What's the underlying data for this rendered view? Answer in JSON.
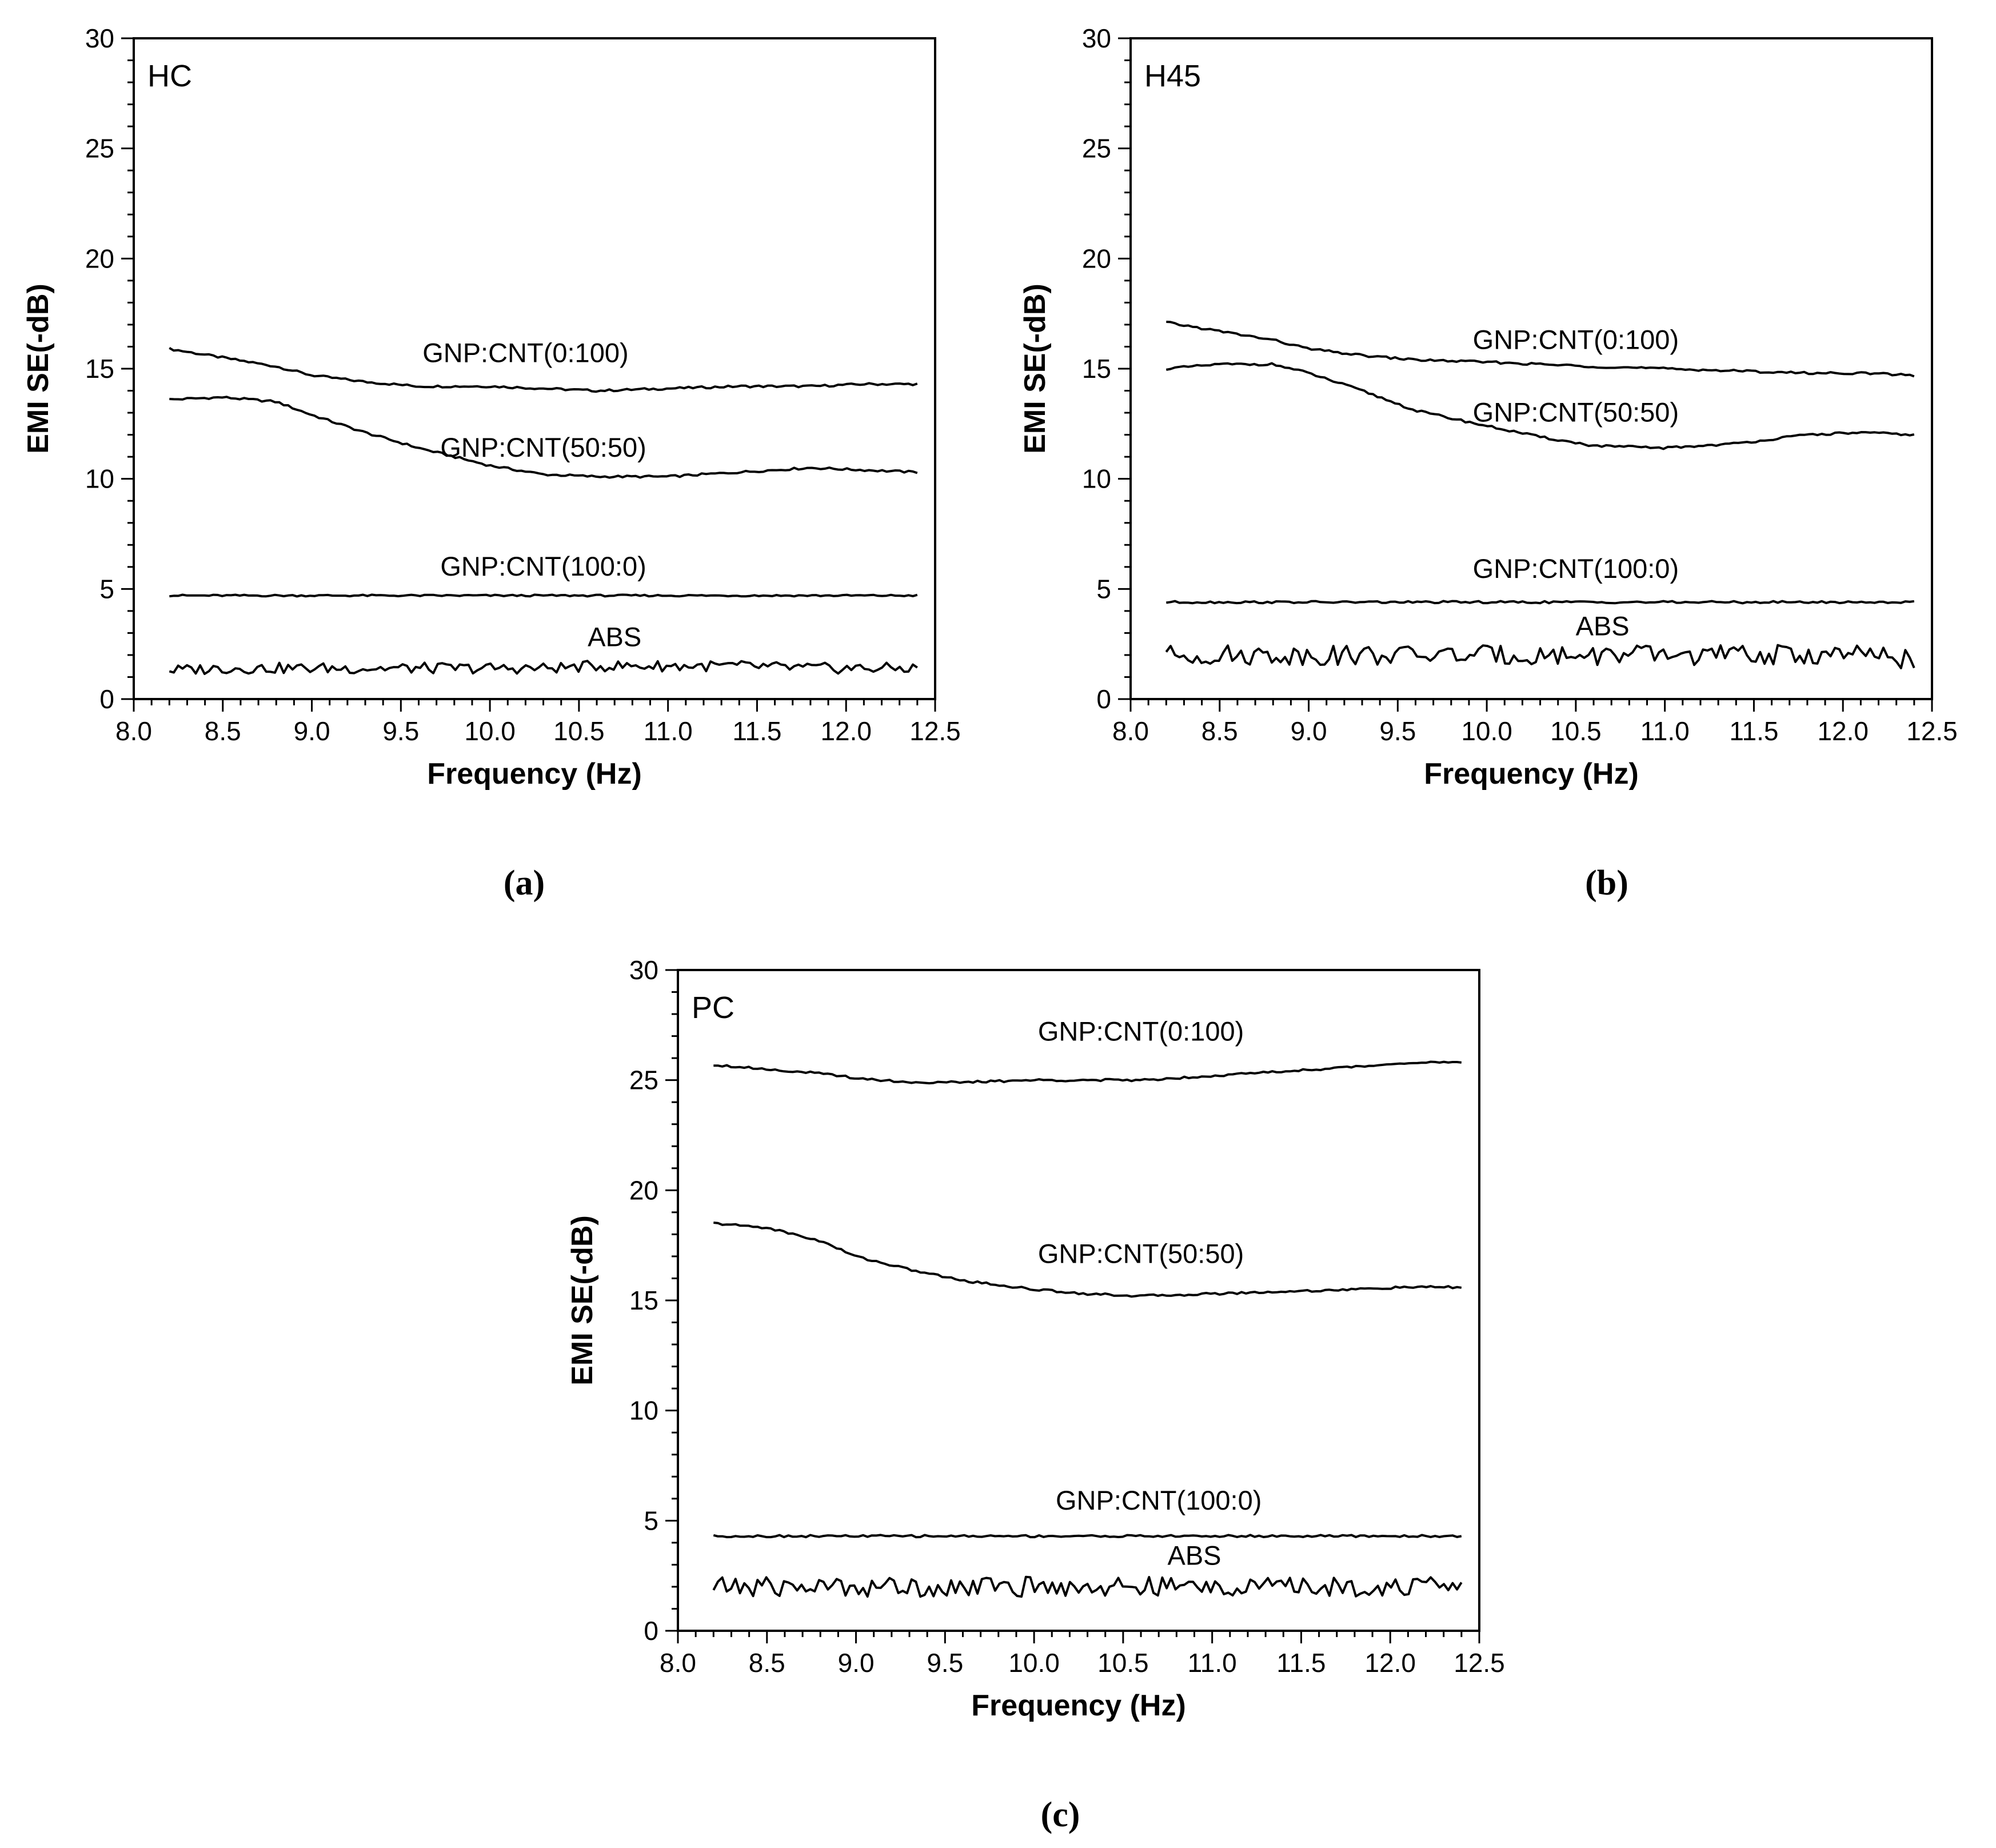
{
  "chart_data": [
    {
      "type": "line",
      "panel_tag": "HC",
      "caption": "(a)",
      "xlabel": "Frequency (Hz)",
      "ylabel": "EMI SE(-dB)",
      "xlim": [
        8.0,
        12.5
      ],
      "ylim": [
        0,
        30
      ],
      "xticks": [
        "8.0",
        "8.5",
        "9.0",
        "9.5",
        "10.0",
        "10.5",
        "11.0",
        "11.5",
        "12.0",
        "12.5"
      ],
      "yticks": [
        "0",
        "5",
        "10",
        "15",
        "20",
        "25",
        "30"
      ],
      "grid": false,
      "x": [
        8.2,
        8.5,
        8.8,
        9.0,
        9.3,
        9.6,
        10.0,
        10.3,
        10.6,
        11.0,
        11.4,
        11.8,
        12.1,
        12.4
      ],
      "series": [
        {
          "name": "GNP:CNT(0:100)",
          "label": "GNP:CNT(0:100)",
          "label_pos": [
            10.2,
            15.3
          ],
          "noise": 0.05,
          "values": [
            15.9,
            15.5,
            15.1,
            14.7,
            14.4,
            14.2,
            14.2,
            14.1,
            14.0,
            14.1,
            14.2,
            14.2,
            14.3,
            14.3
          ]
        },
        {
          "name": "GNP:CNT(50:50)",
          "label": "GNP:CNT(50:50)",
          "label_pos": [
            10.3,
            11.0
          ],
          "noise": 0.05,
          "values": [
            13.6,
            13.7,
            13.5,
            12.9,
            12.1,
            11.4,
            10.6,
            10.2,
            10.1,
            10.1,
            10.3,
            10.5,
            10.4,
            10.3
          ]
        },
        {
          "name": "GNP:CNT(100:0)",
          "label": "GNP:CNT(100:0)",
          "label_pos": [
            10.3,
            5.6
          ],
          "noise": 0.04,
          "values": [
            4.7,
            4.7,
            4.7,
            4.7,
            4.7,
            4.7,
            4.7,
            4.7,
            4.7,
            4.7,
            4.7,
            4.7,
            4.7,
            4.7
          ]
        },
        {
          "name": "ABS",
          "label": "ABS",
          "label_pos": [
            10.7,
            2.4
          ],
          "noise": 0.25,
          "values": [
            1.3,
            1.4,
            1.4,
            1.4,
            1.4,
            1.4,
            1.4,
            1.4,
            1.5,
            1.5,
            1.5,
            1.4,
            1.4,
            1.4
          ]
        }
      ]
    },
    {
      "type": "line",
      "panel_tag": "H45",
      "caption": "(b)",
      "xlabel": "Frequency (Hz)",
      "ylabel": "EMI SE(-dB)",
      "xlim": [
        8.0,
        12.5
      ],
      "ylim": [
        0,
        30
      ],
      "xticks": [
        "8.0",
        "8.5",
        "9.0",
        "9.5",
        "10.0",
        "10.5",
        "11.0",
        "11.5",
        "12.0",
        "12.5"
      ],
      "yticks": [
        "0",
        "5",
        "10",
        "15",
        "20",
        "25",
        "30"
      ],
      "grid": false,
      "x": [
        8.2,
        8.5,
        8.8,
        9.0,
        9.3,
        9.6,
        10.0,
        10.3,
        10.6,
        11.0,
        11.4,
        11.8,
        12.1,
        12.4
      ],
      "series": [
        {
          "name": "GNP:CNT(0:100)",
          "label": "GNP:CNT(0:100)",
          "label_pos": [
            10.5,
            15.9
          ],
          "noise": 0.05,
          "values": [
            17.1,
            16.7,
            16.3,
            15.9,
            15.6,
            15.4,
            15.3,
            15.2,
            15.1,
            15.0,
            14.9,
            14.8,
            14.8,
            14.7
          ]
        },
        {
          "name": "GNP:CNT(50:50)",
          "label": "GNP:CNT(50:50)",
          "label_pos": [
            10.5,
            12.6
          ],
          "noise": 0.05,
          "values": [
            15.0,
            15.2,
            15.2,
            14.8,
            14.0,
            13.1,
            12.4,
            11.9,
            11.5,
            11.4,
            11.6,
            12.0,
            12.1,
            12.0
          ]
        },
        {
          "name": "GNP:CNT(100:0)",
          "label": "GNP:CNT(100:0)",
          "label_pos": [
            10.5,
            5.5
          ],
          "noise": 0.05,
          "values": [
            4.4,
            4.4,
            4.4,
            4.4,
            4.4,
            4.4,
            4.4,
            4.4,
            4.4,
            4.4,
            4.4,
            4.4,
            4.4,
            4.4
          ]
        },
        {
          "name": "ABS",
          "label": "ABS",
          "label_pos": [
            10.65,
            2.9
          ],
          "noise": 0.45,
          "values": [
            2.0,
            2.0,
            2.0,
            2.0,
            2.0,
            2.0,
            2.0,
            2.0,
            2.0,
            2.0,
            2.0,
            2.0,
            2.0,
            1.8
          ]
        }
      ]
    },
    {
      "type": "line",
      "panel_tag": "PC",
      "caption": "(c)",
      "xlabel": "Frequency (Hz)",
      "ylabel": "EMI SE(-dB)",
      "xlim": [
        8.0,
        12.5
      ],
      "ylim": [
        0,
        30
      ],
      "xticks": [
        "8.0",
        "8.5",
        "9.0",
        "9.5",
        "10.0",
        "10.5",
        "11.0",
        "11.5",
        "12.0",
        "12.5"
      ],
      "yticks": [
        "0",
        "5",
        "10",
        "15",
        "20",
        "25",
        "30"
      ],
      "grid": false,
      "x": [
        8.2,
        8.5,
        8.8,
        9.0,
        9.3,
        9.6,
        10.0,
        10.3,
        10.6,
        11.0,
        11.4,
        11.8,
        12.1,
        12.4
      ],
      "series": [
        {
          "name": "GNP:CNT(0:100)",
          "label": "GNP:CNT(0:100)",
          "label_pos": [
            10.6,
            26.8
          ],
          "noise": 0.05,
          "values": [
            25.7,
            25.5,
            25.3,
            25.1,
            24.9,
            24.9,
            25.0,
            25.0,
            25.0,
            25.2,
            25.4,
            25.6,
            25.8,
            25.8
          ]
        },
        {
          "name": "GNP:CNT(50:50)",
          "label": "GNP:CNT(50:50)",
          "label_pos": [
            10.6,
            16.7
          ],
          "noise": 0.05,
          "values": [
            18.5,
            18.3,
            17.7,
            17.0,
            16.4,
            15.9,
            15.5,
            15.3,
            15.2,
            15.3,
            15.4,
            15.5,
            15.6,
            15.6
          ]
        },
        {
          "name": "GNP:CNT(100:0)",
          "label": "GNP:CNT(100:0)",
          "label_pos": [
            10.7,
            5.5
          ],
          "noise": 0.05,
          "values": [
            4.3,
            4.3,
            4.3,
            4.3,
            4.3,
            4.3,
            4.3,
            4.3,
            4.3,
            4.3,
            4.3,
            4.3,
            4.3,
            4.3
          ]
        },
        {
          "name": "ABS",
          "label": "ABS",
          "label_pos": [
            10.9,
            3.0
          ],
          "noise": 0.45,
          "values": [
            2.0,
            2.0,
            2.0,
            2.0,
            2.0,
            2.0,
            2.0,
            2.0,
            2.0,
            2.0,
            2.0,
            2.0,
            2.0,
            2.0
          ]
        }
      ]
    }
  ]
}
